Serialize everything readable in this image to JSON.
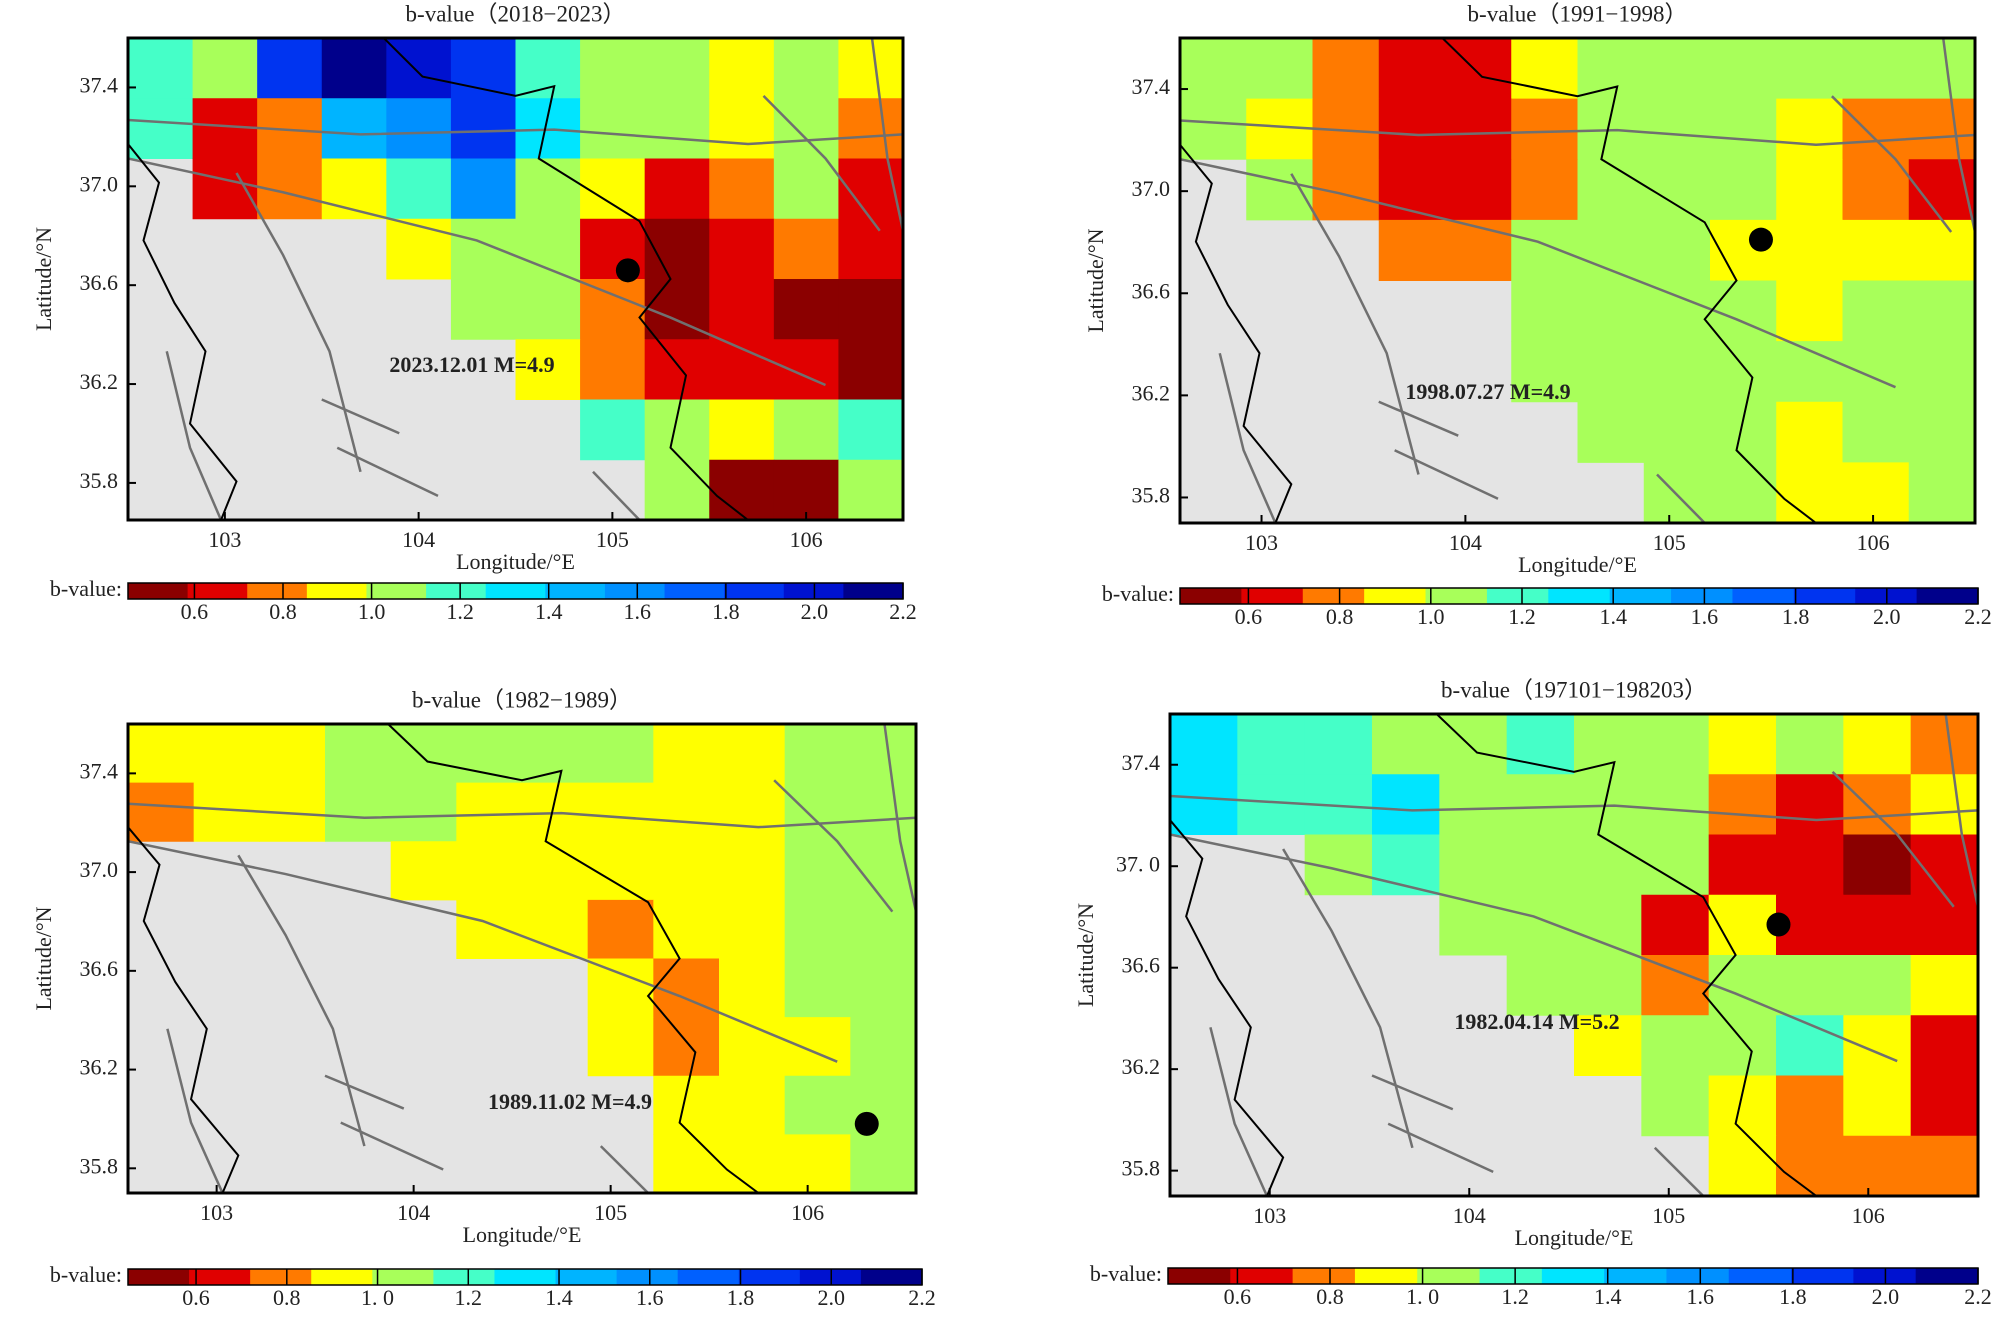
{
  "chart_data": [
    {
      "type": "heatmap",
      "title": "b-value（2018−2023）",
      "x_label": "Longitude/°E",
      "y_label": "Latitude/°N",
      "xlim": [
        102.5,
        106.5
      ],
      "ylim": [
        35.65,
        37.6
      ],
      "xticks": [
        103,
        104,
        105,
        106
      ],
      "yticks": [
        35.8,
        36.2,
        36.6,
        {
          "value": 37,
          "label": "37.0"
        },
        37.4
      ],
      "values": [
        [
          1.2,
          1.1,
          1.9,
          2.1,
          2.0,
          1.9,
          1.2,
          1.1,
          1.0,
          0.9,
          1.0,
          0.9
        ],
        [
          1.2,
          0.7,
          0.8,
          1.5,
          1.6,
          1.8,
          1.3,
          1.0,
          1.1,
          0.9,
          1.0,
          0.8
        ],
        [
          null,
          0.7,
          0.8,
          0.9,
          1.2,
          1.6,
          1.0,
          0.9,
          0.7,
          0.8,
          1.0,
          0.7
        ],
        [
          null,
          null,
          null,
          null,
          0.9,
          1.1,
          1.1,
          0.7,
          0.5,
          0.6,
          0.8,
          0.6
        ],
        [
          null,
          null,
          null,
          null,
          null,
          1.1,
          1.0,
          0.8,
          0.5,
          0.6,
          0.5,
          0.5
        ],
        [
          null,
          null,
          null,
          null,
          null,
          null,
          0.9,
          0.8,
          0.6,
          0.6,
          0.6,
          0.5
        ],
        [
          null,
          null,
          null,
          null,
          null,
          null,
          null,
          1.2,
          1.1,
          0.9,
          1.0,
          1.2
        ],
        [
          null,
          null,
          null,
          null,
          null,
          null,
          null,
          null,
          1.1,
          0.5,
          0.5,
          1.0
        ]
      ],
      "event": {
        "x": 105.08,
        "y": 36.66
      },
      "annotation": "2023.12.01 M=4.9",
      "colorbar_label": "b-value:",
      "colorbar_lim": [
        0.45,
        2.2
      ],
      "colorbar_ticks": [
        0.6,
        0.8,
        {
          "value": 1,
          "label": "1.0"
        },
        1.2,
        1.4,
        1.6,
        1.8,
        {
          "value": 2,
          "label": "2.0"
        },
        2.2
      ],
      "colormap": [
        "#8b0000",
        "#e00000",
        "#ff7a00",
        "#ffff00",
        "#a8ff5a",
        "#45ffc8",
        "#00e5ff",
        "#00b4ff",
        "#0090ff",
        "#0060ff",
        "#0034f0",
        "#0012d0",
        "#00008b"
      ],
      "mask_color": "#e4e4e4",
      "event_color": "#000000"
    },
    {
      "type": "heatmap",
      "title": "b-value（1991−1998）",
      "x_label": "Longitude/°E",
      "y_label": "Latitude/°N",
      "xlim": [
        102.6,
        106.5
      ],
      "ylim": [
        35.7,
        37.6
      ],
      "xticks": [
        103,
        104,
        105,
        106
      ],
      "yticks": [
        35.8,
        36.2,
        36.6,
        {
          "value": 37,
          "label": "37.0"
        },
        37.4
      ],
      "values": [
        [
          1.0,
          1.0,
          0.8,
          0.7,
          0.7,
          0.9,
          1.1,
          1.1,
          1.0,
          1.0,
          1.0,
          1.0
        ],
        [
          1.0,
          0.9,
          0.8,
          0.7,
          0.7,
          0.8,
          1.1,
          1.1,
          1.0,
          0.9,
          0.8,
          0.8
        ],
        [
          null,
          1.0,
          0.8,
          0.7,
          0.7,
          0.8,
          1.1,
          1.1,
          1.0,
          0.9,
          0.8,
          0.7
        ],
        [
          null,
          null,
          null,
          0.8,
          0.8,
          1.0,
          1.1,
          1.0,
          0.9,
          0.9,
          0.9,
          0.9
        ],
        [
          null,
          null,
          null,
          null,
          null,
          1.0,
          1.1,
          1.0,
          1.0,
          0.9,
          1.0,
          1.0
        ],
        [
          null,
          null,
          null,
          null,
          null,
          1.0,
          1.1,
          1.1,
          1.0,
          1.0,
          1.0,
          1.0
        ],
        [
          null,
          null,
          null,
          null,
          null,
          null,
          1.1,
          1.1,
          1.0,
          0.9,
          1.0,
          1.0
        ],
        [
          null,
          null,
          null,
          null,
          null,
          null,
          null,
          1.1,
          1.0,
          0.9,
          0.9,
          1.0
        ]
      ],
      "event": {
        "x": 105.45,
        "y": 36.81
      },
      "annotation": "1998.07.27 M=4.9",
      "colorbar_label": "b-value:",
      "colorbar_lim": [
        0.45,
        2.2
      ],
      "colorbar_ticks": [
        0.6,
        0.8,
        {
          "value": 1,
          "label": "1.0"
        },
        1.2,
        1.4,
        1.6,
        1.8,
        {
          "value": 2,
          "label": "2.0"
        },
        2.2
      ],
      "colormap": [
        "#8b0000",
        "#e00000",
        "#ff7a00",
        "#ffff00",
        "#a8ff5a",
        "#45ffc8",
        "#00e5ff",
        "#00b4ff",
        "#0090ff",
        "#0060ff",
        "#0034f0",
        "#0012d0",
        "#00008b"
      ],
      "mask_color": "#e4e4e4",
      "event_color": "#000000"
    },
    {
      "type": "heatmap",
      "title": "b-value（1982−1989）",
      "x_label": "Longitude/°E",
      "y_label": "Latitude/°N",
      "xlim": [
        102.55,
        106.55
      ],
      "ylim": [
        35.7,
        37.6
      ],
      "xticks": [
        103,
        104,
        105,
        106
      ],
      "yticks": [
        35.8,
        36.2,
        36.6,
        {
          "value": 37,
          "label": "37.0"
        },
        37.4
      ],
      "values": [
        [
          0.9,
          0.9,
          0.95,
          1.0,
          1.0,
          1.0,
          1.0,
          1.0,
          0.95,
          0.95,
          1.0,
          1.05
        ],
        [
          0.85,
          0.9,
          0.9,
          1.0,
          1.0,
          0.95,
          0.95,
          0.95,
          0.9,
          0.95,
          1.05,
          1.1
        ],
        [
          null,
          null,
          null,
          null,
          0.95,
          0.95,
          0.9,
          0.9,
          0.9,
          0.95,
          1.0,
          1.1
        ],
        [
          null,
          null,
          null,
          null,
          null,
          0.9,
          0.9,
          0.85,
          0.9,
          0.95,
          1.0,
          1.1
        ],
        [
          null,
          null,
          null,
          null,
          null,
          null,
          null,
          0.9,
          0.85,
          0.9,
          1.0,
          1.1
        ],
        [
          null,
          null,
          null,
          null,
          null,
          null,
          null,
          0.9,
          0.85,
          0.9,
          0.95,
          1.1
        ],
        [
          null,
          null,
          null,
          null,
          null,
          null,
          null,
          null,
          0.9,
          0.9,
          1.0,
          1.1
        ],
        [
          null,
          null,
          null,
          null,
          null,
          null,
          null,
          null,
          0.9,
          0.9,
          0.95,
          1.1
        ]
      ],
      "event": {
        "x": 106.3,
        "y": 35.98
      },
      "annotation": "1989.11.02 M=4.9",
      "colorbar_label": "b-value:",
      "colorbar_lim": [
        0.45,
        2.2
      ],
      "colorbar_ticks": [
        0.6,
        0.8,
        {
          "value": 1,
          "label": "1. 0"
        },
        1.2,
        1.4,
        1.6,
        1.8,
        {
          "value": 2,
          "label": "2.0"
        },
        2.2
      ],
      "colormap": [
        "#8b0000",
        "#e00000",
        "#ff7a00",
        "#ffff00",
        "#a8ff5a",
        "#45ffc8",
        "#00e5ff",
        "#00b4ff",
        "#0090ff",
        "#0060ff",
        "#0034f0",
        "#0012d0",
        "#00008b"
      ],
      "mask_color": "#e4e4e4",
      "event_color": "#000000"
    },
    {
      "type": "heatmap",
      "title": "b-value（197101−198203）",
      "x_label": "Longitude/°E",
      "y_label": "Latitude/°N",
      "xlim": [
        102.5,
        106.55
      ],
      "ylim": [
        35.7,
        37.6
      ],
      "xticks": [
        103,
        104,
        105,
        106
      ],
      "yticks": [
        35.8,
        36.2,
        36.6,
        {
          "value": 37,
          "label": "37. 0"
        },
        37.4
      ],
      "values": [
        [
          1.3,
          1.2,
          1.2,
          1.1,
          1.1,
          1.2,
          1.1,
          1.0,
          0.9,
          1.0,
          0.9,
          0.8
        ],
        [
          1.3,
          1.2,
          1.2,
          1.3,
          1.1,
          1.1,
          1.1,
          1.0,
          0.8,
          0.7,
          0.8,
          0.9
        ],
        [
          null,
          null,
          1.1,
          1.2,
          1.1,
          1.1,
          1.0,
          1.0,
          0.6,
          0.6,
          0.5,
          0.6
        ],
        [
          null,
          null,
          null,
          null,
          1.1,
          1.1,
          1.0,
          0.6,
          0.9,
          0.7,
          0.6,
          0.7
        ],
        [
          null,
          null,
          null,
          null,
          null,
          1.0,
          1.1,
          0.8,
          1.1,
          1.0,
          1.0,
          0.9
        ],
        [
          null,
          null,
          null,
          null,
          null,
          null,
          0.9,
          1.0,
          1.1,
          1.2,
          0.9,
          0.7
        ],
        [
          null,
          null,
          null,
          null,
          null,
          null,
          null,
          1.0,
          0.9,
          0.8,
          0.9,
          0.7
        ],
        [
          null,
          null,
          null,
          null,
          null,
          null,
          null,
          null,
          0.9,
          0.8,
          0.8,
          0.8
        ]
      ],
      "event": {
        "x": 105.55,
        "y": 36.77
      },
      "annotation": "1982.04.14 M=5.2",
      "colorbar_label": "b-value:",
      "colorbar_lim": [
        0.45,
        2.2
      ],
      "colorbar_ticks": [
        0.6,
        0.8,
        {
          "value": 1,
          "label": "1. 0"
        },
        1.2,
        1.4,
        1.6,
        1.8,
        {
          "value": 2,
          "label": "2.0"
        },
        2.2
      ],
      "colormap": [
        "#8b0000",
        "#e00000",
        "#ff7a00",
        "#ffff00",
        "#a8ff5a",
        "#45ffc8",
        "#00e5ff",
        "#00b4ff",
        "#0090ff",
        "#0060ff",
        "#0034f0",
        "#0012d0",
        "#00008b"
      ],
      "mask_color": "#e4e4e4",
      "event_color": "#000000"
    }
  ]
}
